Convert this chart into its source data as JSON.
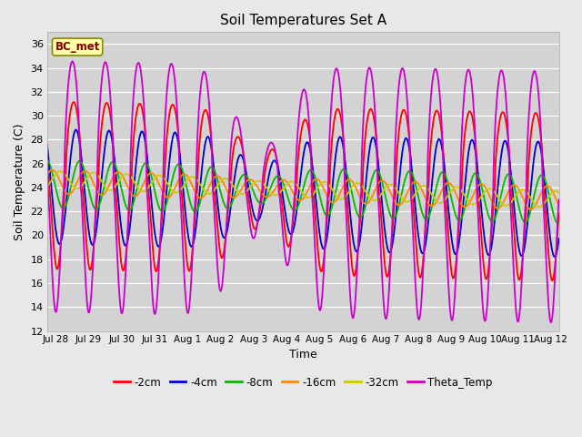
{
  "title": "Soil Temperatures Set A",
  "xlabel": "Time",
  "ylabel": "Soil Temperature (C)",
  "annotation": "BC_met",
  "ylim": [
    12,
    37
  ],
  "yticks": [
    12,
    14,
    16,
    18,
    20,
    22,
    24,
    26,
    28,
    30,
    32,
    34,
    36
  ],
  "xtick_labels": [
    "Jul 28",
    "Jul 29",
    "Jul 30",
    "Jul 31",
    "Aug 1",
    "Aug 2",
    "Aug 3",
    "Aug 4",
    "Aug 5",
    "Aug 6",
    "Aug 7",
    "Aug 8",
    "Aug 9",
    "Aug 10",
    "Aug 11",
    "Aug 12"
  ],
  "series_colors": {
    "-2cm": "#ff0000",
    "-4cm": "#0000cc",
    "-8cm": "#00aa00",
    "-16cm": "#ff8800",
    "-32cm": "#cccc00",
    "Theta_Temp": "#cc00cc"
  },
  "background_color": "#e8e8e8",
  "plot_bg_color": "#d3d3d3",
  "linewidth": 1.3,
  "figsize": [
    6.4,
    4.8
  ],
  "dpi": 100,
  "total_days": 15.5
}
